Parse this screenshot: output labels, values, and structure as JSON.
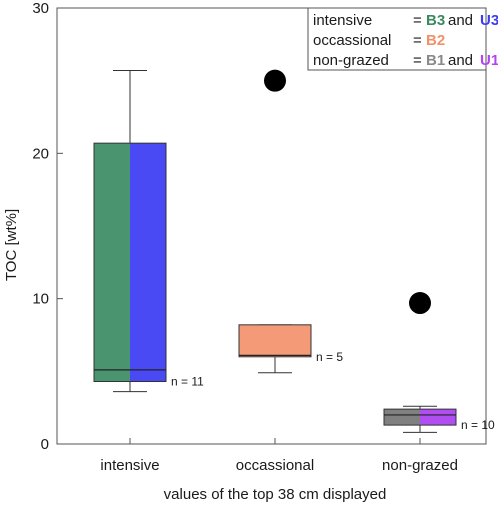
{
  "chart_data": {
    "type": "box",
    "ylabel": "TOC [wt%]",
    "xlabel": "values of the top 38 cm displayed",
    "ylim": [
      0,
      30
    ],
    "yticks": [
      0,
      10,
      20,
      30
    ],
    "categories": [
      "intensive",
      "occassional",
      "non-grazed"
    ],
    "legend": {
      "position": "top-right",
      "rows": [
        {
          "label": "intensive",
          "eq": "=",
          "a": "B3",
          "and": "and",
          "b": "U3",
          "a_color": "#3a8a5f",
          "b_color": "#3d3df0"
        },
        {
          "label": "occassional",
          "eq": "=",
          "a": "B2",
          "a_color": "#f2906a"
        },
        {
          "label": "non-grazed",
          "eq": "=",
          "a": "B1",
          "and": "and",
          "b": "U1",
          "a_color": "#8a8a8a",
          "b_color": "#b443f0"
        }
      ]
    },
    "groups": [
      {
        "category": "intensive",
        "whisker_low": 3.6,
        "q1": 4.3,
        "median": 5.1,
        "q3": 20.7,
        "whisker_high": 25.7,
        "colors": [
          "#4a9470",
          "#4a4af5"
        ],
        "outliers": [],
        "n_label": "n = 11"
      },
      {
        "category": "occassional",
        "whisker_low": 4.9,
        "q1": 6.0,
        "median": 6.1,
        "q3": 8.2,
        "whisker_high": 8.2,
        "colors": [
          "#f59a76"
        ],
        "outliers": [
          25.0
        ],
        "n_label": "n = 5"
      },
      {
        "category": "non-grazed",
        "whisker_low": 0.8,
        "q1": 1.3,
        "median": 2.0,
        "q3": 2.4,
        "whisker_high": 2.6,
        "colors": [
          "#808080",
          "#b04ef2"
        ],
        "outliers": [
          9.7
        ],
        "n_label": "n = 10"
      }
    ]
  }
}
